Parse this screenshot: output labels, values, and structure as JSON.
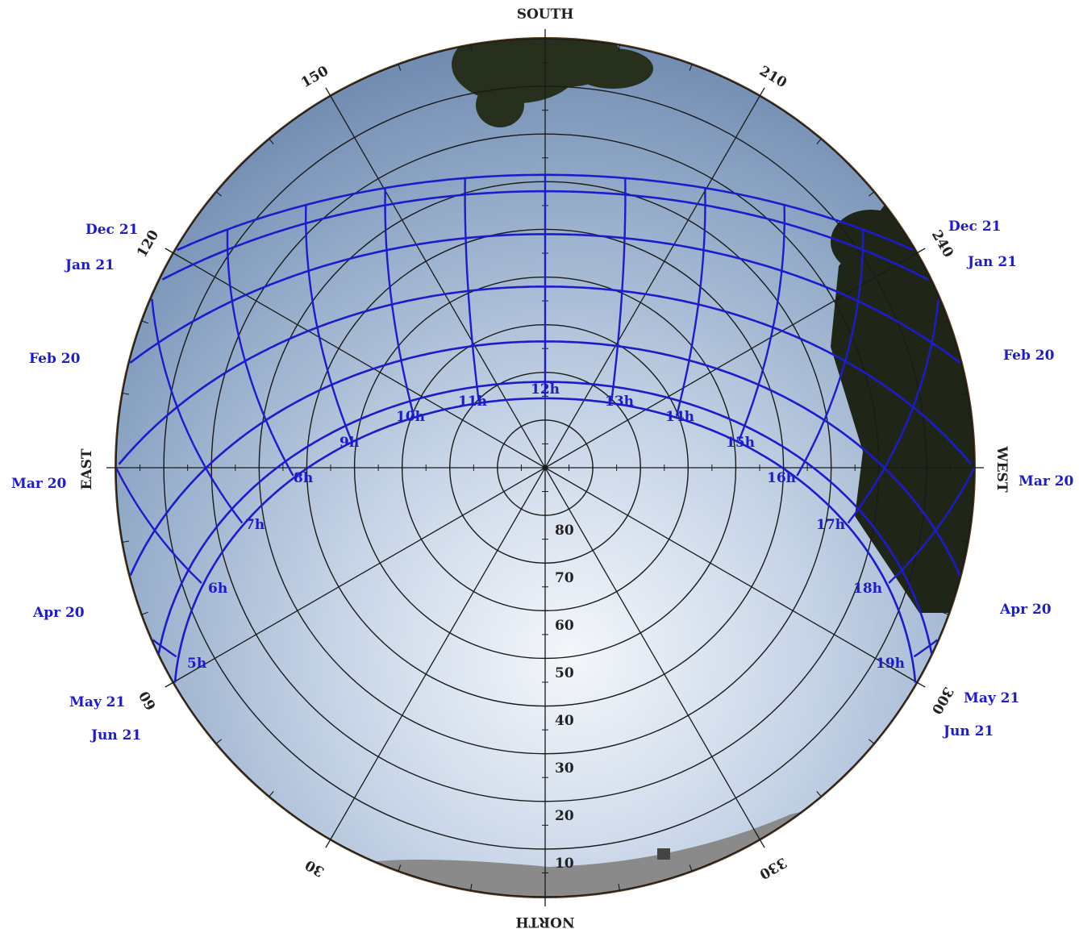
{
  "compass": {
    "south": "SOUTH",
    "north": "NORTH",
    "east": "EAST",
    "west": "WEST"
  },
  "azimuth_labels": [
    "30",
    "60",
    "120",
    "150",
    "210",
    "240",
    "300",
    "330"
  ],
  "altitude_labels": [
    "10",
    "20",
    "30",
    "40",
    "50",
    "60",
    "70",
    "80"
  ],
  "hour_labels": [
    "5h",
    "6h",
    "7h",
    "8h",
    "9h",
    "10h",
    "11h",
    "12h",
    "13h",
    "14h",
    "15h",
    "16h",
    "17h",
    "18h",
    "19h"
  ],
  "date_labels_left": [
    "Dec 21",
    "Jan 21",
    "Feb 20",
    "Mar 20",
    "Apr 20",
    "May 21",
    "Jun 21"
  ],
  "date_labels_right": [
    "Dec 21",
    "Jan 21",
    "Feb 20",
    "Mar 20",
    "Apr 20",
    "May 21",
    "Jun 21"
  ],
  "colors": {
    "sun_path": "#1c1ccc",
    "grid": "#1a1a1a",
    "labels_blue": "#1c1ccc",
    "labels_black": "#222222"
  },
  "image_description_note": ""
}
